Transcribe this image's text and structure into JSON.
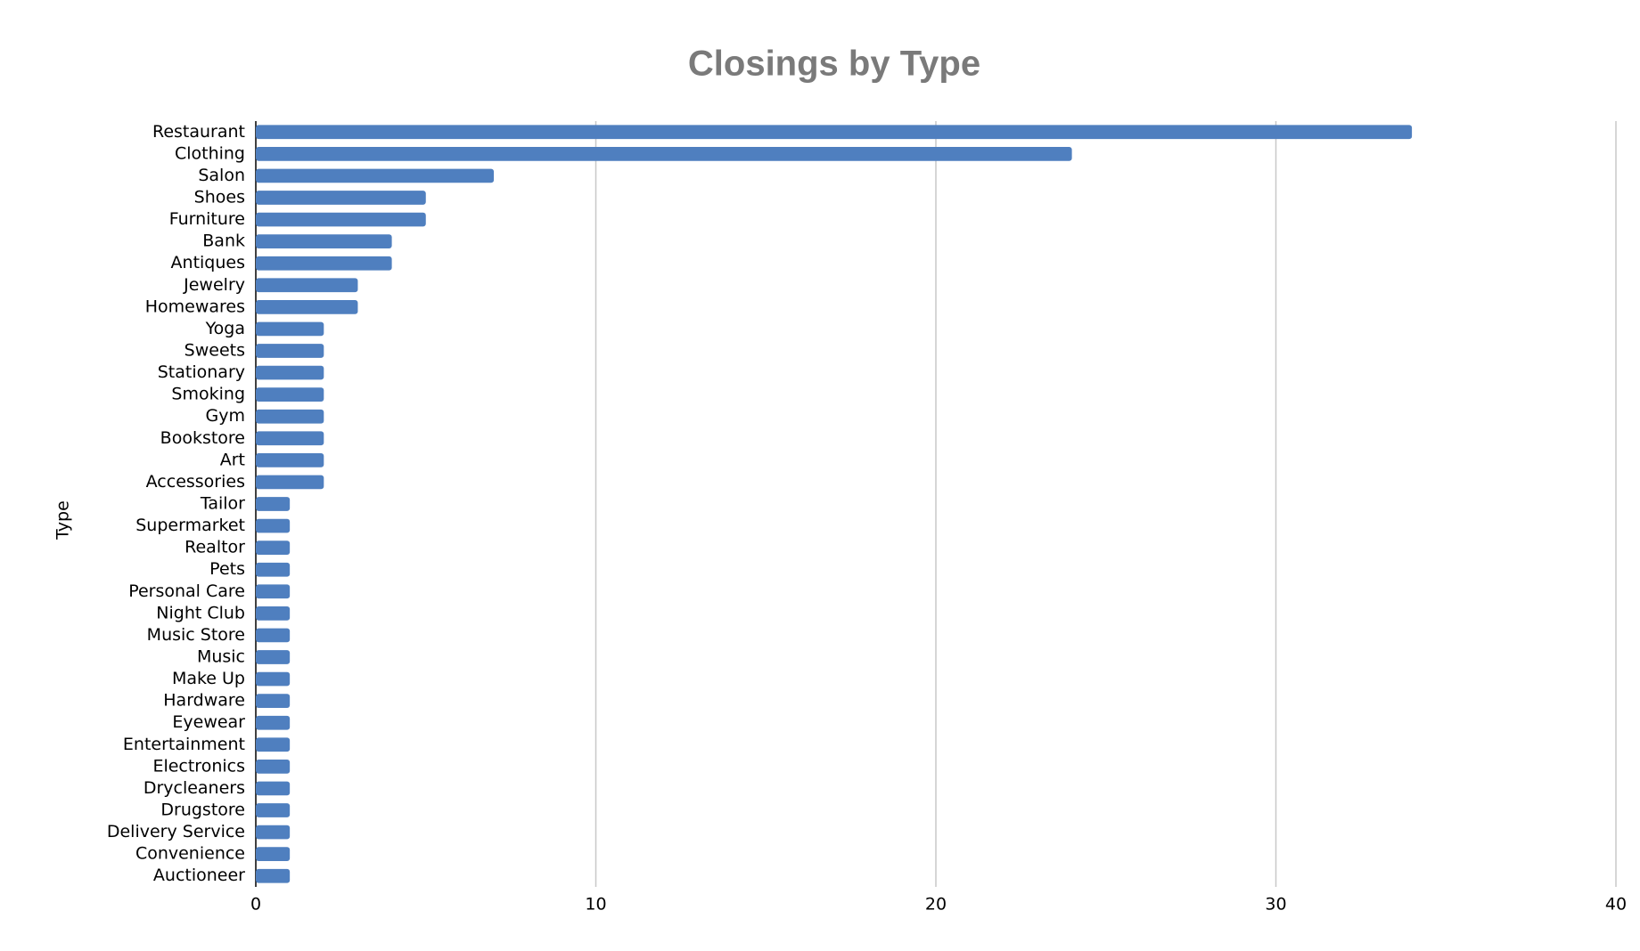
{
  "chart_data": {
    "type": "bar",
    "orientation": "horizontal",
    "title": "Closings by Type",
    "y_label": "Type",
    "categories": [
      "Restaurant",
      "Clothing",
      "Salon",
      "Shoes",
      "Furniture",
      "Bank",
      "Antiques",
      "Jewelry",
      "Homewares",
      "Yoga",
      "Sweets",
      "Stationary",
      "Smoking",
      "Gym",
      "Bookstore",
      "Art",
      "Accessories",
      "Tailor",
      "Supermarket",
      "Realtor",
      "Pets",
      "Personal Care",
      "Night Club",
      "Music Store",
      "Music",
      "Make Up",
      "Hardware",
      "Eyewear",
      "Entertainment",
      "Electronics",
      "Drycleaners",
      "Drugstore",
      "Delivery Service",
      "Convenience",
      "Auctioneer"
    ],
    "values": [
      34,
      24,
      7,
      5,
      5,
      4,
      4,
      3,
      3,
      2,
      2,
      2,
      2,
      2,
      2,
      2,
      2,
      1,
      1,
      1,
      1,
      1,
      1,
      1,
      1,
      1,
      1,
      1,
      1,
      1,
      1,
      1,
      1,
      1,
      1
    ],
    "color": "#4f7fbf",
    "xlim": [
      0,
      40
    ],
    "xticks": [
      0,
      10,
      20,
      30,
      40
    ],
    "grid": true
  }
}
